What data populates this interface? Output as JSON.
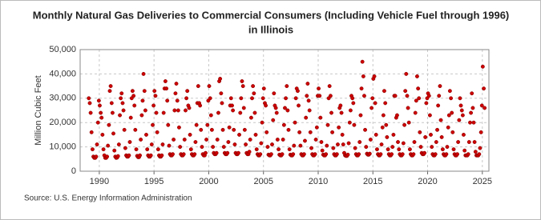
{
  "chart_data": {
    "type": "scatter",
    "title": [
      "Monthly Natural Gas Deliveries to Commercial Consumers (Including Vehicle Fuel through 1996)",
      "in Illinois"
    ],
    "y_label": "Million Cubic Feet",
    "source": "Source: U.S. Energy Information Administration",
    "color": "#cc0000",
    "grid": true,
    "xlim": [
      1988.25,
      2025.6
    ],
    "xticks": [
      1990,
      1995,
      2000,
      2005,
      2010,
      2015,
      2020,
      2025
    ],
    "ylim": [
      0,
      50000
    ],
    "yticks": [
      0,
      {
        "value": 10000,
        "label": "10,000"
      },
      {
        "value": 20000,
        "label": "20,000"
      },
      {
        "value": 30000,
        "label": "30,000"
      },
      {
        "value": 40000,
        "label": "40,000"
      },
      {
        "value": 50000,
        "label": "50,000"
      }
    ],
    "x": [
      1989.04,
      1989.13,
      1989.21,
      1989.29,
      1989.38,
      1989.46,
      1989.54,
      1989.63,
      1989.71,
      1989.79,
      1989.88,
      1989.96,
      1990.04,
      1990.13,
      1990.21,
      1990.29,
      1990.38,
      1990.46,
      1990.54,
      1990.63,
      1990.71,
      1990.79,
      1990.88,
      1990.96,
      1991.04,
      1991.13,
      1991.21,
      1991.29,
      1991.38,
      1991.46,
      1991.54,
      1991.63,
      1991.71,
      1991.79,
      1991.88,
      1991.96,
      1992.04,
      1992.13,
      1992.21,
      1992.29,
      1992.38,
      1992.46,
      1992.54,
      1992.63,
      1992.71,
      1992.79,
      1992.88,
      1992.96,
      1993.04,
      1993.13,
      1993.21,
      1993.29,
      1993.38,
      1993.46,
      1993.54,
      1993.63,
      1993.71,
      1993.79,
      1993.88,
      1993.96,
      1994.04,
      1994.13,
      1994.21,
      1994.29,
      1994.38,
      1994.46,
      1994.54,
      1994.63,
      1994.71,
      1994.79,
      1994.88,
      1994.96,
      1995.04,
      1995.13,
      1995.21,
      1995.29,
      1995.38,
      1995.46,
      1995.54,
      1995.63,
      1995.71,
      1995.79,
      1995.88,
      1995.96,
      1996.04,
      1996.13,
      1996.21,
      1996.29,
      1996.38,
      1996.46,
      1996.54,
      1996.63,
      1996.71,
      1996.79,
      1996.88,
      1996.96,
      1997.04,
      1997.13,
      1997.21,
      1997.29,
      1997.38,
      1997.46,
      1997.54,
      1997.63,
      1997.71,
      1997.79,
      1997.88,
      1997.96,
      1998.04,
      1998.13,
      1998.21,
      1998.29,
      1998.38,
      1998.46,
      1998.54,
      1998.63,
      1998.71,
      1998.79,
      1998.88,
      1998.96,
      1999.04,
      1999.13,
      1999.21,
      1999.29,
      1999.38,
      1999.46,
      1999.54,
      1999.63,
      1999.71,
      1999.79,
      1999.88,
      1999.96,
      2000.04,
      2000.13,
      2000.21,
      2000.29,
      2000.38,
      2000.46,
      2000.54,
      2000.63,
      2000.71,
      2000.79,
      2000.88,
      2000.96,
      2001.04,
      2001.13,
      2001.21,
      2001.29,
      2001.38,
      2001.46,
      2001.54,
      2001.63,
      2001.71,
      2001.79,
      2001.88,
      2001.96,
      2002.04,
      2002.13,
      2002.21,
      2002.29,
      2002.38,
      2002.46,
      2002.54,
      2002.63,
      2002.71,
      2002.79,
      2002.88,
      2002.96,
      2003.04,
      2003.13,
      2003.21,
      2003.29,
      2003.38,
      2003.46,
      2003.54,
      2003.63,
      2003.71,
      2003.79,
      2003.88,
      2003.96,
      2004.04,
      2004.13,
      2004.21,
      2004.29,
      2004.38,
      2004.46,
      2004.54,
      2004.63,
      2004.71,
      2004.79,
      2004.88,
      2004.96,
      2005.04,
      2005.13,
      2005.21,
      2005.29,
      2005.38,
      2005.46,
      2005.54,
      2005.63,
      2005.71,
      2005.79,
      2005.88,
      2005.96,
      2006.04,
      2006.13,
      2006.21,
      2006.29,
      2006.38,
      2006.46,
      2006.54,
      2006.63,
      2006.71,
      2006.79,
      2006.88,
      2006.96,
      2007.04,
      2007.13,
      2007.21,
      2007.29,
      2007.38,
      2007.46,
      2007.54,
      2007.63,
      2007.71,
      2007.79,
      2007.88,
      2007.96,
      2008.04,
      2008.13,
      2008.21,
      2008.29,
      2008.38,
      2008.46,
      2008.54,
      2008.63,
      2008.71,
      2008.79,
      2008.88,
      2008.96,
      2009.04,
      2009.13,
      2009.21,
      2009.29,
      2009.38,
      2009.46,
      2009.54,
      2009.63,
      2009.71,
      2009.79,
      2009.88,
      2009.96,
      2010.04,
      2010.13,
      2010.21,
      2010.29,
      2010.38,
      2010.46,
      2010.54,
      2010.63,
      2010.71,
      2010.79,
      2010.88,
      2010.96,
      2011.04,
      2011.13,
      2011.21,
      2011.29,
      2011.38,
      2011.46,
      2011.54,
      2011.63,
      2011.71,
      2011.79,
      2011.88,
      2011.96,
      2012.04,
      2012.13,
      2012.21,
      2012.29,
      2012.38,
      2012.46,
      2012.54,
      2012.63,
      2012.71,
      2012.79,
      2012.88,
      2012.96,
      2013.04,
      2013.13,
      2013.21,
      2013.29,
      2013.38,
      2013.46,
      2013.54,
      2013.63,
      2013.71,
      2013.79,
      2013.88,
      2013.96,
      2014.04,
      2014.13,
      2014.21,
      2014.29,
      2014.38,
      2014.46,
      2014.54,
      2014.63,
      2014.71,
      2014.79,
      2014.88,
      2014.96,
      2015.04,
      2015.13,
      2015.21,
      2015.29,
      2015.38,
      2015.46,
      2015.54,
      2015.63,
      2015.71,
      2015.79,
      2015.88,
      2015.96,
      2016.04,
      2016.13,
      2016.21,
      2016.29,
      2016.38,
      2016.46,
      2016.54,
      2016.63,
      2016.71,
      2016.79,
      2016.88,
      2016.96,
      2017.04,
      2017.13,
      2017.21,
      2017.29,
      2017.38,
      2017.46,
      2017.54,
      2017.63,
      2017.71,
      2017.79,
      2017.88,
      2017.96,
      2018.04,
      2018.13,
      2018.21,
      2018.29,
      2018.38,
      2018.46,
      2018.54,
      2018.63,
      2018.71,
      2018.79,
      2018.88,
      2018.96,
      2019.04,
      2019.13,
      2019.21,
      2019.29,
      2019.38,
      2019.46,
      2019.54,
      2019.63,
      2019.71,
      2019.79,
      2019.88,
      2019.96,
      2020.04,
      2020.13,
      2020.21,
      2020.29,
      2020.38,
      2020.46,
      2020.54,
      2020.63,
      2020.71,
      2020.79,
      2020.88,
      2020.96,
      2021.04,
      2021.13,
      2021.21,
      2021.29,
      2021.38,
      2021.46,
      2021.54,
      2021.63,
      2021.71,
      2021.79,
      2021.88,
      2021.96,
      2022.04,
      2022.13,
      2022.21,
      2022.29,
      2022.38,
      2022.46,
      2022.54,
      2022.63,
      2022.71,
      2022.79,
      2022.88,
      2022.96,
      2023.04,
      2023.13,
      2023.21,
      2023.29,
      2023.38,
      2023.46,
      2023.54,
      2023.63,
      2023.71,
      2023.79,
      2023.88,
      2023.96,
      2024.04,
      2024.13,
      2024.21,
      2024.29,
      2024.38,
      2024.46,
      2024.54,
      2024.63,
      2024.71,
      2024.79,
      2024.88,
      2024.96,
      2025.04,
      2025.13,
      2025.21
    ],
    "values": [
      30000,
      28000,
      24000,
      16000,
      9000,
      6000,
      5500,
      5500,
      6000,
      11000,
      20000,
      29000,
      27000,
      24000,
      22000,
      15000,
      9000,
      6500,
      5500,
      5500,
      6000,
      10500,
      19000,
      33000,
      35000,
      28000,
      24000,
      15500,
      8500,
      6000,
      5500,
      5600,
      6200,
      11000,
      23000,
      30000,
      32000,
      28000,
      25000,
      17000,
      9500,
      6500,
      6000,
      6000,
      6500,
      12000,
      22000,
      30000,
      33000,
      31000,
      27000,
      17000,
      9000,
      6300,
      5800,
      5800,
      6500,
      13000,
      23000,
      29000,
      40000,
      33000,
      25000,
      15000,
      9000,
      6500,
      6000,
      6000,
      6500,
      11000,
      19000,
      27000,
      33000,
      31000,
      24000,
      16000,
      9000,
      6500,
      6000,
      6000,
      6500,
      11000,
      24000,
      34000,
      37000,
      34000,
      29000,
      19000,
      10500,
      7000,
      6500,
      6500,
      7000,
      13000,
      25000,
      32000,
      36000,
      29000,
      25000,
      18000,
      10000,
      7000,
      6500,
      6500,
      7000,
      13000,
      25000,
      30000,
      33000,
      27000,
      26000,
      15000,
      9000,
      7000,
      6500,
      6500,
      7000,
      12000,
      19000,
      28000,
      35000,
      28000,
      27000,
      17000,
      10000,
      7000,
      6500,
      6500,
      7500,
      13000,
      19000,
      29000,
      35000,
      30000,
      23000,
      17000,
      10000,
      7500,
      7000,
      7000,
      7500,
      13000,
      24000,
      37000,
      38000,
      32000,
      28000,
      17000,
      10000,
      7500,
      7000,
      7000,
      7500,
      12000,
      18000,
      27000,
      30000,
      27000,
      25000,
      17000,
      11000,
      7500,
      7000,
      7000,
      7500,
      15000,
      24000,
      30000,
      37000,
      35000,
      26000,
      17000,
      11000,
      7500,
      7000,
      7000,
      8000,
      13000,
      22000,
      30000,
      35000,
      32000,
      24000,
      15000,
      9000,
      7000,
      6500,
      6500,
      7000,
      11500,
      20000,
      30000,
      34000,
      28000,
      27000,
      16000,
      10000,
      6800,
      6500,
      6500,
      7000,
      11000,
      21000,
      32000,
      27000,
      26000,
      24000,
      13000,
      9000,
      6800,
      6500,
      6500,
      7000,
      13000,
      19000,
      26000,
      30000,
      35000,
      25000,
      17000,
      9000,
      6800,
      6500,
      6500,
      7000,
      10500,
      20000,
      30000,
      34000,
      33000,
      27000,
      16000,
      10500,
      7000,
      6500,
      6500,
      7000,
      12500,
      22000,
      31000,
      36000,
      29000,
      25000,
      16000,
      9500,
      7000,
      6500,
      6500,
      7000,
      13000,
      18000,
      31000,
      34000,
      31000,
      22000,
      12000,
      8500,
      6800,
      6500,
      6500,
      7000,
      10500,
      19000,
      30000,
      35000,
      31000,
      24000,
      16000,
      9500,
      7000,
      6500,
      6500,
      7000,
      11000,
      18000,
      26000,
      27000,
      24000,
      15000,
      11000,
      7500,
      6500,
      6300,
      6300,
      6800,
      11500,
      20000,
      25000,
      31000,
      30000,
      28000,
      19000,
      9500,
      7000,
      6500,
      6500,
      7000,
      12000,
      23000,
      34000,
      45000,
      39000,
      31000,
      17000,
      10000,
      7200,
      6800,
      6800,
      7200,
      13000,
      26000,
      30000,
      38000,
      39000,
      28000,
      15000,
      9000,
      7000,
      6500,
      6500,
      7000,
      11000,
      18000,
      23000,
      33000,
      28000,
      19000,
      14000,
      9000,
      7000,
      6500,
      6500,
      7000,
      10000,
      15000,
      31000,
      31000,
      22000,
      23000,
      12000,
      9000,
      7000,
      6500,
      6500,
      7000,
      11500,
      19000,
      33000,
      40000,
      31000,
      26000,
      20000,
      9000,
      7000,
      6500,
      6500,
      7000,
      12000,
      24000,
      29000,
      39000,
      34000,
      30000,
      16000,
      10000,
      7500,
      7000,
      7000,
      7500,
      14000,
      28000,
      30000,
      32000,
      31000,
      23000,
      15000,
      10000,
      7000,
      6500,
      6500,
      7000,
      12000,
      17000,
      27000,
      31000,
      35000,
      21000,
      14000,
      9000,
      7000,
      6500,
      6500,
      7000,
      10000,
      18000,
      23000,
      33000,
      30000,
      24000,
      16000,
      9000,
      7000,
      6500,
      6500,
      7000,
      12000,
      21000,
      30000,
      27000,
      25000,
      23000,
      15000,
      8500,
      6500,
      6500,
      6500,
      7000,
      12000,
      20000,
      24000,
      32000,
      26000,
      20000,
      12000,
      8000,
      6500,
      6500,
      6500,
      7000,
      9500,
      16000,
      27000,
      43000,
      34000,
      26000
    ]
  }
}
